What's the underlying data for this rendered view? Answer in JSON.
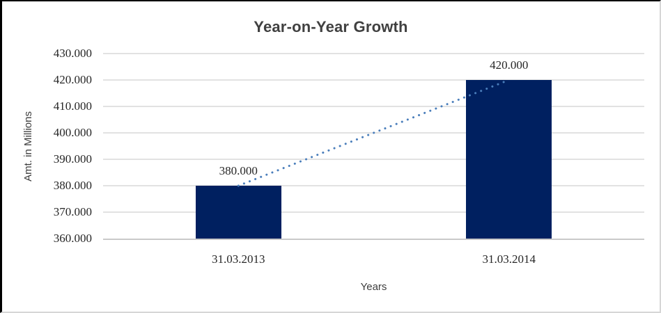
{
  "chart_data": {
    "type": "bar",
    "title": "Year-on-Year Growth",
    "xlabel": "Years",
    "ylabel": "Amt. in Millions",
    "categories": [
      "31.03.2013",
      "31.03.2014"
    ],
    "values": [
      380000,
      420000
    ],
    "value_labels": [
      "380.000",
      "420.000"
    ],
    "ylim": [
      360000,
      430000
    ],
    "ytick_step": 10000,
    "yticks": [
      {
        "value": 360000,
        "label": "360.000"
      },
      {
        "value": 370000,
        "label": "370.000"
      },
      {
        "value": 380000,
        "label": "380.000"
      },
      {
        "value": 390000,
        "label": "390.000"
      },
      {
        "value": 400000,
        "label": "400.000"
      },
      {
        "value": 410000,
        "label": "410.000"
      },
      {
        "value": 420000,
        "label": "420.000"
      },
      {
        "value": 430000,
        "label": "430.000"
      }
    ],
    "grid": true,
    "legend": "none",
    "trendline": {
      "type": "linear",
      "style": "dotted",
      "color": "#4a7ebb",
      "connects": [
        "31.03.2013",
        "31.03.2014"
      ]
    },
    "colors": {
      "bar": "#002060",
      "trendline": "#4a7ebb",
      "gridline": "#e2e2e2",
      "axis_line": "#c9c9c9",
      "title_text": "#404040",
      "tick_text": "#262626",
      "axis_title_text": "#3d3d3d",
      "frame_border_dark": "#000000",
      "frame_border_light": "#d6d6d6",
      "background": "#ffffff"
    }
  }
}
